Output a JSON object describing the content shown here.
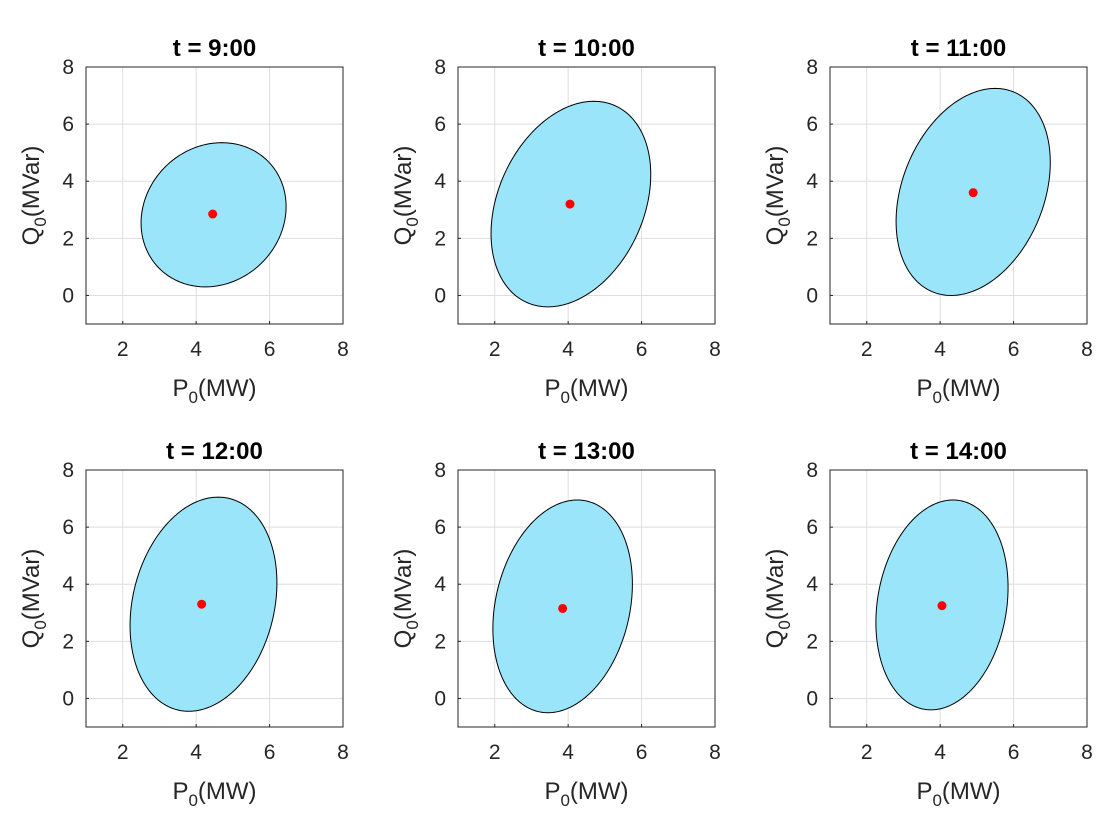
{
  "figure": {
    "colors": {
      "fill": "#9be5fa",
      "edge": "#000000",
      "center": "#ff0000",
      "text": "#262626"
    }
  },
  "chart_data": [
    {
      "type": "scatter",
      "title": "t = 9:00",
      "xlabel_main": "P",
      "xlabel_sub": "0",
      "xlabel_unit": "(MW)",
      "ylabel_main": "Q",
      "ylabel_sub": "0",
      "ylabel_unit": "(MVar)",
      "xlim": [
        1,
        8
      ],
      "ylim": [
        -1,
        8
      ],
      "xticks": [
        2,
        4,
        6,
        8
      ],
      "yticks": [
        0,
        2,
        4,
        6,
        8
      ],
      "center": [
        4.45,
        2.85
      ],
      "ellipse_extents": {
        "x_min": 2.5,
        "x_max": 6.45,
        "y_min": 0.3,
        "y_max": 5.35,
        "x_at_y_max": 4.7,
        "x_at_y_min": 4.15
      }
    },
    {
      "type": "scatter",
      "title": "t = 10:00",
      "xlabel_main": "P",
      "xlabel_sub": "0",
      "xlabel_unit": "(MW)",
      "ylabel_main": "Q",
      "ylabel_sub": "0",
      "ylabel_unit": "(MVar)",
      "xlim": [
        1,
        8
      ],
      "ylim": [
        -1,
        8
      ],
      "xticks": [
        2,
        4,
        6,
        8
      ],
      "yticks": [
        0,
        2,
        4,
        6,
        8
      ],
      "center": [
        4.05,
        3.2
      ],
      "ellipse_extents": {
        "x_min": 1.9,
        "x_max": 6.25,
        "y_min": -0.4,
        "y_max": 6.8,
        "x_at_y_max": 4.7,
        "x_at_y_min": 3.4
      }
    },
    {
      "type": "scatter",
      "title": "t = 11:00",
      "xlabel_main": "P",
      "xlabel_sub": "0",
      "xlabel_unit": "(MW)",
      "ylabel_main": "Q",
      "ylabel_sub": "0",
      "ylabel_unit": "(MVar)",
      "xlim": [
        1,
        8
      ],
      "ylim": [
        -1,
        8
      ],
      "xticks": [
        2,
        4,
        6,
        8
      ],
      "yticks": [
        0,
        2,
        4,
        6,
        8
      ],
      "center": [
        4.9,
        3.6
      ],
      "ellipse_extents": {
        "x_min": 2.8,
        "x_max": 7.0,
        "y_min": 0.0,
        "y_max": 7.25,
        "x_at_y_max": 5.5,
        "x_at_y_min": 4.3
      }
    },
    {
      "type": "scatter",
      "title": "t = 12:00",
      "xlabel_main": "P",
      "xlabel_sub": "0",
      "xlabel_unit": "(MW)",
      "ylabel_main": "Q",
      "ylabel_sub": "0",
      "ylabel_unit": "(MVar)",
      "xlim": [
        1,
        8
      ],
      "ylim": [
        -1,
        8
      ],
      "xticks": [
        2,
        4,
        6,
        8
      ],
      "yticks": [
        0,
        2,
        4,
        6,
        8
      ],
      "center": [
        4.15,
        3.3
      ],
      "ellipse_extents": {
        "x_min": 2.2,
        "x_max": 6.2,
        "y_min": -0.45,
        "y_max": 7.05,
        "x_at_y_max": 4.6,
        "x_at_y_min": 3.7
      }
    },
    {
      "type": "scatter",
      "title": "t = 13:00",
      "xlabel_main": "P",
      "xlabel_sub": "0",
      "xlabel_unit": "(MW)",
      "ylabel_main": "Q",
      "ylabel_sub": "0",
      "ylabel_unit": "(MVar)",
      "xlim": [
        1,
        8
      ],
      "ylim": [
        -1,
        8
      ],
      "xticks": [
        2,
        4,
        6,
        8
      ],
      "yticks": [
        0,
        2,
        4,
        6,
        8
      ],
      "center": [
        3.85,
        3.15
      ],
      "ellipse_extents": {
        "x_min": 1.95,
        "x_max": 5.75,
        "y_min": -0.5,
        "y_max": 6.95,
        "x_at_y_max": 4.25,
        "x_at_y_min": 3.45
      }
    },
    {
      "type": "scatter",
      "title": "t = 14:00",
      "xlabel_main": "P",
      "xlabel_sub": "0",
      "xlabel_unit": "(MW)",
      "ylabel_main": "Q",
      "ylabel_sub": "0",
      "ylabel_unit": "(MVar)",
      "xlim": [
        1,
        8
      ],
      "ylim": [
        -1,
        8
      ],
      "xticks": [
        2,
        4,
        6,
        8
      ],
      "yticks": [
        0,
        2,
        4,
        6,
        8
      ],
      "center": [
        4.05,
        3.25
      ],
      "ellipse_extents": {
        "x_min": 2.25,
        "x_max": 5.85,
        "y_min": -0.4,
        "y_max": 6.95,
        "x_at_y_max": 4.35,
        "x_at_y_min": 3.65
      }
    }
  ]
}
